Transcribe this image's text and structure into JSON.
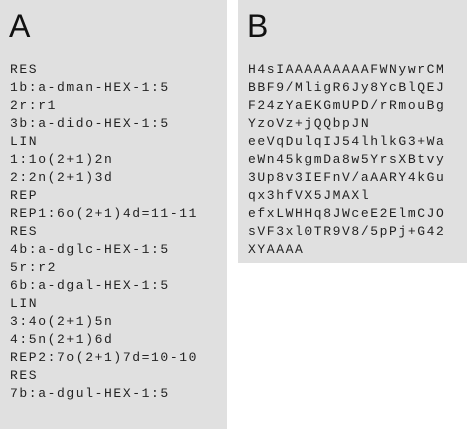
{
  "panels": [
    {
      "label": "A",
      "lines": [
        "RES",
        "1b:a-dman-HEX-1:5",
        "2r:r1",
        "3b:a-dido-HEX-1:5",
        "LIN",
        "1:1o(2+1)2n",
        "2:2n(2+1)3d",
        "REP",
        "REP1:6o(2+1)4d=11-11",
        "RES",
        "4b:a-dglc-HEX-1:5",
        "5r:r2",
        "6b:a-dgal-HEX-1:5",
        "LIN",
        "3:4o(2+1)5n",
        "4:5n(2+1)6d",
        "REP2:7o(2+1)7d=10-10",
        "RES",
        "7b:a-dgul-HEX-1:5"
      ]
    },
    {
      "label": "B",
      "lines": [
        "H4sIAAAAAAAAAFWNywrCM",
        "BBF9/MligR6Jy8YcBlQEJ",
        "F24zYaEKGmUPD/rRmouBg",
        "YzoVz+jQQbpJN",
        "eeVqDulqIJ54lhlkG3+Wa",
        "eWn45kgmDa8w5YrsXBtvy",
        "3Up8v3IEFnV/aAARY4kGu",
        "qx3hfVX5JMAXl",
        "efxLWHHq8JWceE2ElmCJO",
        "sVF3xl0TR9V8/5pPj+G42",
        "XYAAAA"
      ]
    }
  ]
}
